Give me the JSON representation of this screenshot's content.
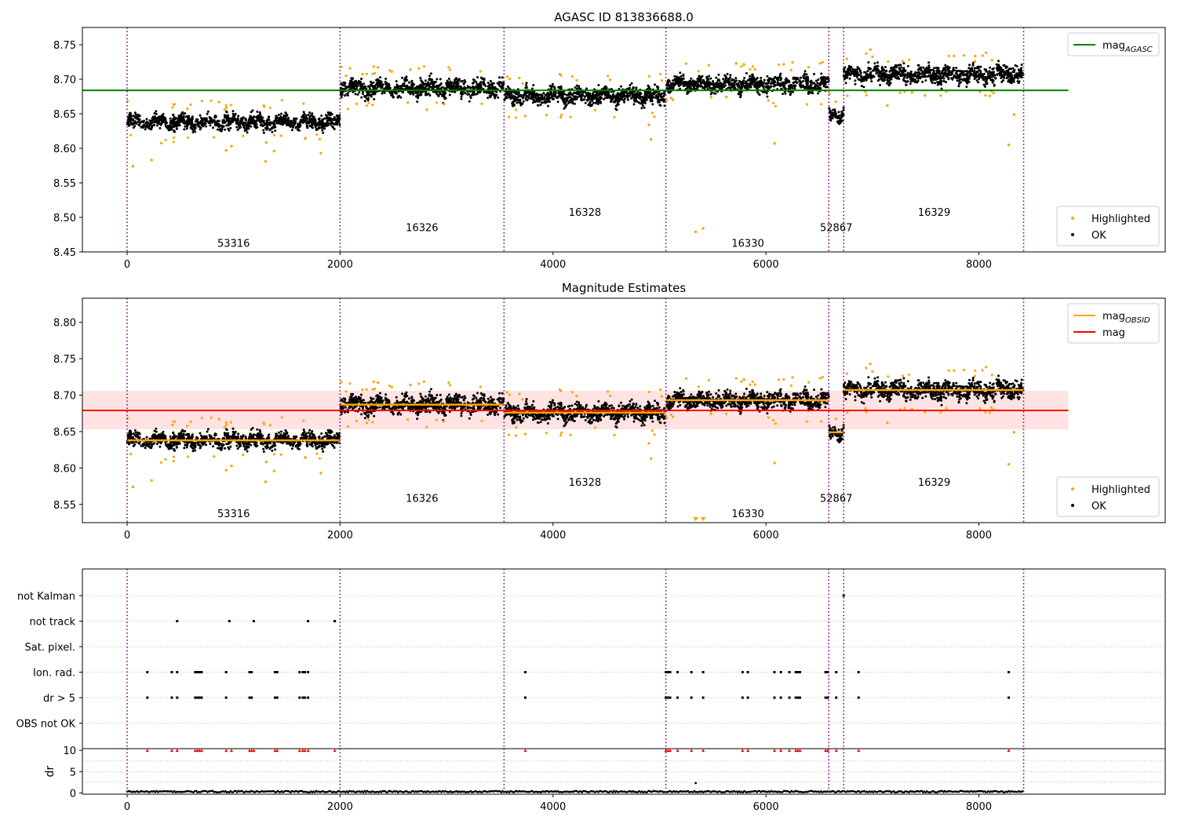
{
  "chart_data": [
    {
      "id": "p1",
      "type": "scatter",
      "title": "AGASC ID 813836688.0",
      "xlim": [
        -420,
        9750
      ],
      "ylim": [
        8.45,
        8.775
      ],
      "xticks": [
        0,
        2000,
        4000,
        6000,
        8000
      ],
      "yticks": [
        8.45,
        8.5,
        8.55,
        8.6,
        8.65,
        8.7,
        8.75
      ],
      "grid": false,
      "obsid_boundaries": [
        0,
        2000,
        3540,
        5060,
        6590,
        6730,
        8420
      ],
      "obsid_labels": [
        {
          "text": "53316",
          "x": 1000,
          "y": 8.463
        },
        {
          "text": "16326",
          "x": 2770,
          "y": 8.486
        },
        {
          "text": "16328",
          "x": 4300,
          "y": 8.508
        },
        {
          "text": "16330",
          "x": 5830,
          "y": 8.463
        },
        {
          "text": "52867",
          "x": 6660,
          "y": 8.486
        },
        {
          "text": "16329",
          "x": 7580,
          "y": 8.508
        }
      ],
      "segments": [
        {
          "x0": 0,
          "x1": 2000,
          "level": 8.638,
          "spread": 0.007
        },
        {
          "x0": 2000,
          "x1": 3540,
          "level": 8.687,
          "spread": 0.008
        },
        {
          "x0": 3540,
          "x1": 5060,
          "level": 8.676,
          "spread": 0.008
        },
        {
          "x0": 5060,
          "x1": 6590,
          "level": 8.693,
          "spread": 0.008
        },
        {
          "x0": 6590,
          "x1": 6730,
          "level": 8.649,
          "spread": 0.006
        },
        {
          "x0": 6730,
          "x1": 8420,
          "level": 8.707,
          "spread": 0.008
        }
      ],
      "highlighted_outliers": [
        {
          "x": 55,
          "y": 8.574
        },
        {
          "x": 230,
          "y": 8.583
        },
        {
          "x": 930,
          "y": 8.597
        },
        {
          "x": 980,
          "y": 8.603
        },
        {
          "x": 1300,
          "y": 8.581
        },
        {
          "x": 1380,
          "y": 8.596
        },
        {
          "x": 1820,
          "y": 8.593
        },
        {
          "x": 4920,
          "y": 8.613
        },
        {
          "x": 4900,
          "y": 8.634
        },
        {
          "x": 5340,
          "y": 8.479
        },
        {
          "x": 5410,
          "y": 8.484
        },
        {
          "x": 6080,
          "y": 8.607
        },
        {
          "x": 7140,
          "y": 8.662
        },
        {
          "x": 8280,
          "y": 8.605
        },
        {
          "x": 8330,
          "y": 8.649
        },
        {
          "x": 6980,
          "y": 8.743
        },
        {
          "x": 2660,
          "y": 8.714
        },
        {
          "x": 5720,
          "y": 8.723
        }
      ],
      "lines": [
        {
          "name": "mag_AGASC",
          "y": 8.684,
          "x0": -420,
          "x1": 8840,
          "color": "#008000"
        }
      ],
      "legends": [
        {
          "position": "top-right",
          "entries": [
            {
              "kind": "line",
              "name": "mag",
              "sub": "AGASC",
              "color": "#008000"
            }
          ]
        },
        {
          "position": "bottom-right",
          "entries": [
            {
              "kind": "point",
              "name": "Highlighted",
              "color": "#ffa500"
            },
            {
              "kind": "point",
              "name": "OK",
              "color": "#000000"
            }
          ]
        }
      ]
    },
    {
      "id": "p2",
      "type": "scatter",
      "title": "Magnitude Estimates",
      "xlim": [
        -420,
        9750
      ],
      "ylim": [
        8.525,
        8.833
      ],
      "xticks": [
        0,
        2000,
        4000,
        6000,
        8000
      ],
      "yticks": [
        8.55,
        8.6,
        8.65,
        8.7,
        8.75,
        8.8
      ],
      "grid": false,
      "obsid_boundaries": [
        0,
        2000,
        3540,
        5060,
        6590,
        6730,
        8420
      ],
      "obsid_labels": [
        {
          "text": "53316",
          "x": 1000,
          "y": 8.538
        },
        {
          "text": "16326",
          "x": 2770,
          "y": 8.559
        },
        {
          "text": "16328",
          "x": 4300,
          "y": 8.581
        },
        {
          "text": "16330",
          "x": 5830,
          "y": 8.538
        },
        {
          "text": "52867",
          "x": 6660,
          "y": 8.559
        },
        {
          "text": "16329",
          "x": 7580,
          "y": 8.581
        }
      ],
      "segments": [
        {
          "x0": 0,
          "x1": 2000,
          "level": 8.638,
          "spread": 0.007
        },
        {
          "x0": 2000,
          "x1": 3540,
          "level": 8.687,
          "spread": 0.008
        },
        {
          "x0": 3540,
          "x1": 5060,
          "level": 8.676,
          "spread": 0.008
        },
        {
          "x0": 5060,
          "x1": 6590,
          "level": 8.693,
          "spread": 0.008
        },
        {
          "x0": 6590,
          "x1": 6730,
          "level": 8.649,
          "spread": 0.006
        },
        {
          "x0": 6730,
          "x1": 8420,
          "level": 8.707,
          "spread": 0.008
        }
      ],
      "obsid_mags": [
        {
          "x0": 0,
          "x1": 2000,
          "y": 8.638
        },
        {
          "x0": 2000,
          "x1": 3540,
          "y": 8.687
        },
        {
          "x0": 3540,
          "x1": 5060,
          "y": 8.676
        },
        {
          "x0": 5060,
          "x1": 6590,
          "y": 8.693
        },
        {
          "x0": 6590,
          "x1": 6730,
          "y": 8.649
        },
        {
          "x0": 6730,
          "x1": 8420,
          "y": 8.707
        }
      ],
      "mag": {
        "y": 8.679,
        "band": [
          8.653,
          8.706
        ],
        "x0": -420,
        "x1": 8840,
        "color": "#ff0000"
      },
      "highlighted_outliers": [
        {
          "x": 55,
          "y": 8.574
        },
        {
          "x": 230,
          "y": 8.583
        },
        {
          "x": 930,
          "y": 8.597
        },
        {
          "x": 980,
          "y": 8.603
        },
        {
          "x": 1300,
          "y": 8.581
        },
        {
          "x": 1380,
          "y": 8.596
        },
        {
          "x": 1820,
          "y": 8.593
        },
        {
          "x": 4920,
          "y": 8.613
        },
        {
          "x": 4900,
          "y": 8.634
        },
        {
          "x": 6080,
          "y": 8.607
        },
        {
          "x": 7140,
          "y": 8.662
        },
        {
          "x": 8280,
          "y": 8.605
        },
        {
          "x": 8330,
          "y": 8.649
        },
        {
          "x": 6980,
          "y": 8.743
        },
        {
          "x": 2660,
          "y": 8.714
        },
        {
          "x": 5720,
          "y": 8.723
        }
      ],
      "offscale_markers": [
        {
          "x": 5340
        },
        {
          "x": 5410
        }
      ],
      "legends": [
        {
          "position": "top-right",
          "entries": [
            {
              "kind": "line",
              "name": "mag",
              "sub": "OBSID",
              "color": "#ffa500"
            },
            {
              "kind": "line",
              "name": "mag",
              "sub": "",
              "color": "#ff0000"
            }
          ]
        },
        {
          "position": "bottom-right",
          "entries": [
            {
              "kind": "point",
              "name": "Highlighted",
              "color": "#ffa500"
            },
            {
              "kind": "point",
              "name": "OK",
              "color": "#000000"
            }
          ]
        }
      ]
    },
    {
      "id": "p3",
      "type": "scatter",
      "xlim": [
        -420,
        9750
      ],
      "categories": [
        "not Kalman",
        "not track",
        "Sat. pixel.",
        "Ion. rad.",
        "dr > 5",
        "OBS not OK"
      ],
      "grid": true,
      "obsid_boundaries": [
        0,
        2000,
        3540,
        5060,
        6590,
        6730,
        8420
      ],
      "flags": {
        "not Kalman": [
          6730
        ],
        "not track": [
          470,
          960,
          1190,
          1700,
          1950
        ],
        "Sat. pixel.": [],
        "Ion. rad.": [
          190,
          420,
          470,
          640,
          660,
          680,
          700,
          930,
          1150,
          1170,
          1390,
          1410,
          1620,
          1650,
          1670,
          1700,
          3740,
          5060,
          5080,
          5100,
          5170,
          5300,
          5410,
          5780,
          5830,
          6080,
          6140,
          6220,
          6280,
          6300,
          6320,
          6560,
          6580,
          6660,
          6870,
          8280
        ],
        "dr > 5": [
          190,
          420,
          470,
          640,
          660,
          680,
          700,
          930,
          1150,
          1170,
          1390,
          1410,
          1620,
          1650,
          1670,
          1700,
          3740,
          5060,
          5080,
          5100,
          5170,
          5300,
          5410,
          5780,
          5830,
          6080,
          6140,
          6220,
          6280,
          6300,
          6320,
          6560,
          6580,
          6660,
          6870,
          8280
        ],
        "OBS not OK": []
      }
    },
    {
      "id": "p4",
      "type": "scatter",
      "ylabel": "dr",
      "xlim": [
        -420,
        9750
      ],
      "ylim": [
        -0.3,
        10.4
      ],
      "xticks": [
        0,
        2000,
        4000,
        6000,
        8000
      ],
      "yticks": [
        0,
        5,
        10
      ],
      "grid": true,
      "obsid_boundaries": [
        0,
        2000,
        3540,
        5060,
        6590,
        6730,
        8420
      ],
      "dr_baseline": 0.3,
      "dr_outlier": {
        "x": 5340,
        "y": 2.3
      },
      "capped_x": [
        190,
        420,
        470,
        640,
        660,
        680,
        700,
        930,
        980,
        1150,
        1170,
        1190,
        1390,
        1410,
        1620,
        1650,
        1670,
        1700,
        1950,
        3740,
        5060,
        5080,
        5100,
        5170,
        5300,
        5410,
        5780,
        5830,
        6080,
        6140,
        6220,
        6280,
        6300,
        6320,
        6560,
        6580,
        6660,
        6870,
        8280
      ],
      "capped_value": 10
    }
  ]
}
